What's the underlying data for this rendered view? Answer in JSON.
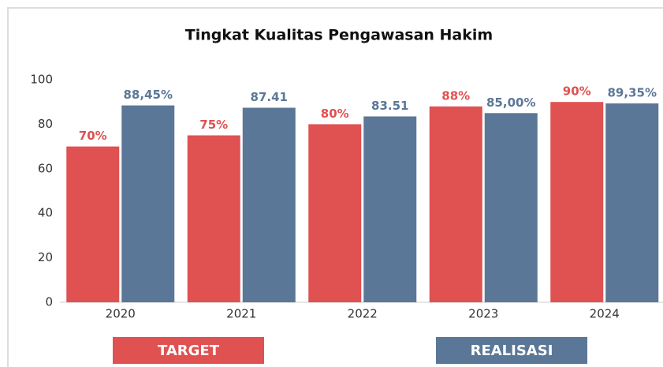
{
  "chart_data": {
    "type": "bar",
    "title": "Tingkat Kualitas Pengawasan Hakim",
    "categories": [
      "2020",
      "2021",
      "2022",
      "2023",
      "2024"
    ],
    "series": [
      {
        "name": "TARGET",
        "color": "#e05151",
        "values": [
          70,
          75,
          80,
          88,
          90
        ],
        "value_labels": [
          "70%",
          "75%",
          "80%",
          "88%",
          "90%"
        ]
      },
      {
        "name": "REALISASI",
        "color": "#5b7797",
        "values": [
          88.45,
          87.41,
          83.51,
          85.0,
          89.35
        ],
        "value_labels": [
          "88,45%",
          "87.41",
          "83.51",
          "85,00%",
          "89,35%"
        ]
      }
    ],
    "ylim": [
      0,
      100
    ],
    "yticks": [
      0,
      20,
      40,
      60,
      80,
      100
    ],
    "grid": false
  }
}
